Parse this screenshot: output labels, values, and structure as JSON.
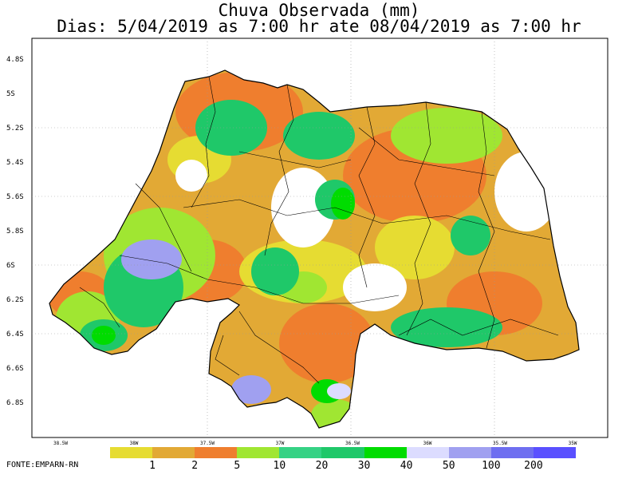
{
  "title": {
    "line1": "Chuva Observada (mm)",
    "line2": "Dias: 5/04/2019 as 7:00 hr ate 08/04/2019 as 7:00 hr"
  },
  "y_ticks": [
    "4.8S",
    "5S",
    "5.2S",
    "5.4S",
    "5.6S",
    "5.8S",
    "6S",
    "6.2S",
    "6.4S",
    "6.6S",
    "6.8S"
  ],
  "x_ticks": [
    "38.5W",
    "38W",
    "37.5W",
    "37W",
    "36.5W",
    "36W",
    "35.5W",
    "35W"
  ],
  "legend": {
    "labels": [
      "1",
      "2",
      "5",
      "10",
      "20",
      "30",
      "40",
      "50",
      "100",
      "200"
    ],
    "colors": [
      "#e6dc32",
      "#e2a935",
      "#ef7e2e",
      "#a0e632",
      "#35d284",
      "#1fc869",
      "#00dc00",
      "#dcdcff",
      "#a0a0f0",
      "#6e6ef0",
      "#5a50ff"
    ]
  },
  "footer": "FONTE:EMPARN-RN",
  "colors": {
    "outline": "#000000",
    "grid": "#999999"
  }
}
